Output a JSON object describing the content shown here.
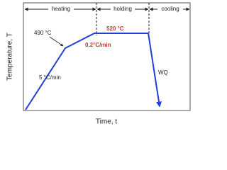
{
  "phases": [
    "heating",
    "holding",
    "cooling"
  ],
  "labels": {
    "peak_temp": "520 °C",
    "hold_rate": "0.2°C/min",
    "knee_temp": "490 °C",
    "heat_rate": "5 °C/min",
    "quench": "WQ"
  },
  "axes": {
    "x_label": "Time, t",
    "y_label": "Temperature, T"
  }
}
